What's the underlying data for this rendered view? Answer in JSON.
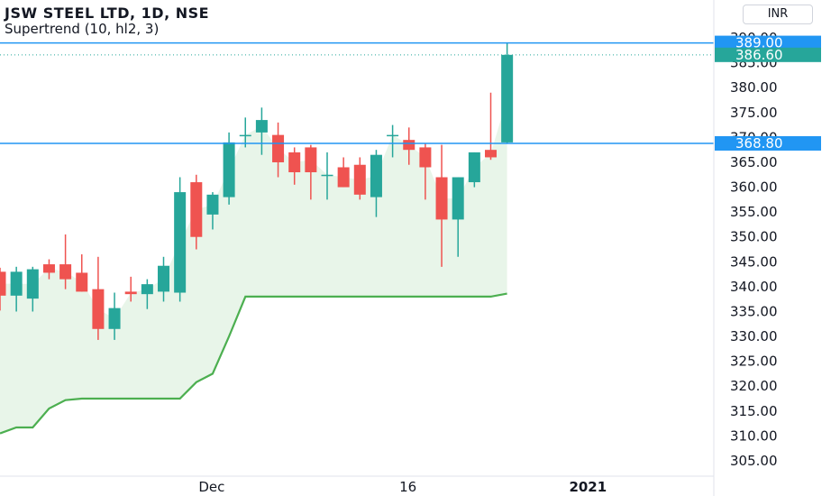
{
  "header": {
    "symbol_line": "JSW STEEL LTD, 1D, NSE",
    "indicator_line": "Supertrend (10, hl2, 3)",
    "currency": "INR"
  },
  "colors": {
    "up": "#26a69a",
    "down": "#ef5350",
    "supertrend": "#4caf50",
    "supertrend_fill": "#e8f5e9",
    "hline": "#2196f3",
    "label_bg": "#2196f3",
    "last_price_bg": "#26a69a",
    "axis_text": "#131722",
    "axis_line": "#e0e3eb"
  },
  "chart_data": {
    "type": "candlestick",
    "ylim": [
      303,
      394
    ],
    "y_ticks": [
      "305.00",
      "310.00",
      "315.00",
      "320.00",
      "325.00",
      "330.00",
      "335.00",
      "340.00",
      "345.00",
      "350.00",
      "355.00",
      "360.00",
      "365.00",
      "370.00",
      "375.00",
      "380.00",
      "385.00",
      "390.00"
    ],
    "x_ticks": [
      {
        "label": "Dec",
        "index": 12.5
      },
      {
        "label": "16",
        "index": 24.5
      },
      {
        "label": "2021",
        "index": 35.5
      }
    ],
    "candles": [
      {
        "o": 343.0,
        "h": 343.8,
        "l": 335.2,
        "c": 338.2
      },
      {
        "o": 338.2,
        "h": 344.0,
        "l": 335.0,
        "c": 343.0
      },
      {
        "o": 337.6,
        "h": 344.0,
        "l": 335.0,
        "c": 343.5
      },
      {
        "o": 344.5,
        "h": 345.5,
        "l": 341.5,
        "c": 342.8
      },
      {
        "o": 344.5,
        "h": 350.5,
        "l": 339.5,
        "c": 341.5
      },
      {
        "o": 342.8,
        "h": 346.5,
        "l": 339.0,
        "c": 339.0
      },
      {
        "o": 339.5,
        "h": 346.0,
        "l": 329.3,
        "c": 331.5
      },
      {
        "o": 331.5,
        "h": 338.8,
        "l": 329.3,
        "c": 335.7
      },
      {
        "o": 339.0,
        "h": 342.0,
        "l": 337.0,
        "c": 338.5
      },
      {
        "o": 338.5,
        "h": 341.5,
        "l": 335.5,
        "c": 340.5
      },
      {
        "o": 339.0,
        "h": 346.0,
        "l": 337.0,
        "c": 344.2
      },
      {
        "o": 338.8,
        "h": 362.0,
        "l": 337.0,
        "c": 359.0
      },
      {
        "o": 361.0,
        "h": 362.5,
        "l": 347.5,
        "c": 350.0
      },
      {
        "o": 354.5,
        "h": 359.0,
        "l": 351.5,
        "c": 358.5
      },
      {
        "o": 358.0,
        "h": 371.0,
        "l": 356.5,
        "c": 369.0
      },
      {
        "o": 370.5,
        "h": 374.0,
        "l": 368.0,
        "c": 370.5
      },
      {
        "o": 371.0,
        "h": 376.0,
        "l": 366.5,
        "c": 373.5
      },
      {
        "o": 370.5,
        "h": 373.0,
        "l": 362.0,
        "c": 365.0
      },
      {
        "o": 367.0,
        "h": 368.0,
        "l": 360.5,
        "c": 363.0
      },
      {
        "o": 368.0,
        "h": 368.5,
        "l": 357.5,
        "c": 363.0
      },
      {
        "o": 362.5,
        "h": 367.0,
        "l": 357.5,
        "c": 362.5
      },
      {
        "o": 364.0,
        "h": 366.0,
        "l": 360.0,
        "c": 360.0
      },
      {
        "o": 364.5,
        "h": 366.0,
        "l": 357.5,
        "c": 358.5
      },
      {
        "o": 358.0,
        "h": 367.5,
        "l": 354.0,
        "c": 366.5
      },
      {
        "o": 370.5,
        "h": 372.5,
        "l": 366.0,
        "c": 370.5
      },
      {
        "o": 369.5,
        "h": 372.0,
        "l": 364.5,
        "c": 367.5
      },
      {
        "o": 368.0,
        "h": 368.8,
        "l": 357.5,
        "c": 364.0
      },
      {
        "o": 362.0,
        "h": 368.5,
        "l": 344.0,
        "c": 353.5
      },
      {
        "o": 353.5,
        "h": 362.0,
        "l": 346.0,
        "c": 362.0
      },
      {
        "o": 361.0,
        "h": 367.0,
        "l": 360.0,
        "c": 367.0
      },
      {
        "o": 367.5,
        "h": 379.0,
        "l": 365.5,
        "c": 366.0
      },
      {
        "o": 369.0,
        "h": 389.0,
        "l": 368.8,
        "c": 386.6
      }
    ],
    "supertrend": [
      {
        "i": 0,
        "v": 310.5
      },
      {
        "i": 1,
        "v": 311.7
      },
      {
        "i": 2,
        "v": 311.7
      },
      {
        "i": 3,
        "v": 315.5
      },
      {
        "i": 4,
        "v": 317.2
      },
      {
        "i": 5,
        "v": 317.5
      },
      {
        "i": 6,
        "v": 317.5
      },
      {
        "i": 7,
        "v": 317.5
      },
      {
        "i": 8,
        "v": 317.5
      },
      {
        "i": 9,
        "v": 317.5
      },
      {
        "i": 10,
        "v": 317.5
      },
      {
        "i": 11,
        "v": 317.5
      },
      {
        "i": 12,
        "v": 320.8
      },
      {
        "i": 13,
        "v": 322.5
      },
      {
        "i": 14,
        "v": 330.0
      },
      {
        "i": 15,
        "v": 338.0
      },
      {
        "i": 16,
        "v": 338.0
      },
      {
        "i": 17,
        "v": 338.0
      },
      {
        "i": 18,
        "v": 338.0
      },
      {
        "i": 19,
        "v": 338.0
      },
      {
        "i": 20,
        "v": 338.0
      },
      {
        "i": 21,
        "v": 338.0
      },
      {
        "i": 22,
        "v": 338.0
      },
      {
        "i": 23,
        "v": 338.0
      },
      {
        "i": 24,
        "v": 338.0
      },
      {
        "i": 25,
        "v": 338.0
      },
      {
        "i": 26,
        "v": 338.0
      },
      {
        "i": 27,
        "v": 338.0
      },
      {
        "i": 28,
        "v": 338.0
      },
      {
        "i": 29,
        "v": 338.0
      },
      {
        "i": 30,
        "v": 338.0
      },
      {
        "i": 31,
        "v": 338.6
      }
    ],
    "horizontal_lines": [
      {
        "value": 389.0,
        "label": "389.00"
      },
      {
        "value": 368.8,
        "label": "368.80"
      }
    ],
    "last_price": {
      "value": 386.6,
      "label": "386.60"
    }
  }
}
